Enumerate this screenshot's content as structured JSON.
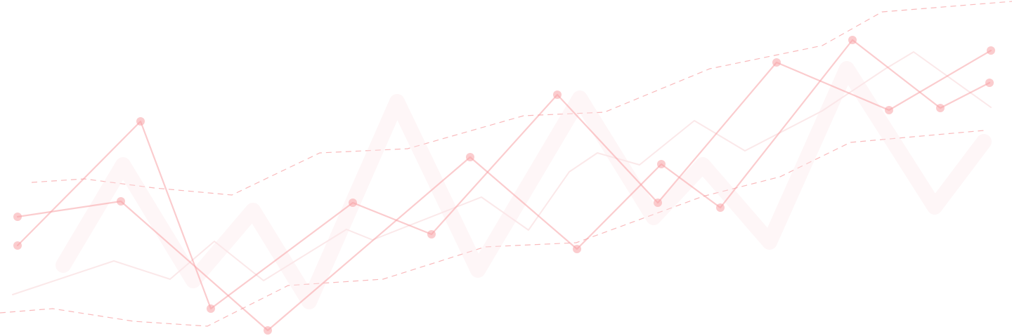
{
  "colors": {
    "accent": "#f7a3a6",
    "faint": "#fbe6e7",
    "background": "#ffffff"
  }
}
